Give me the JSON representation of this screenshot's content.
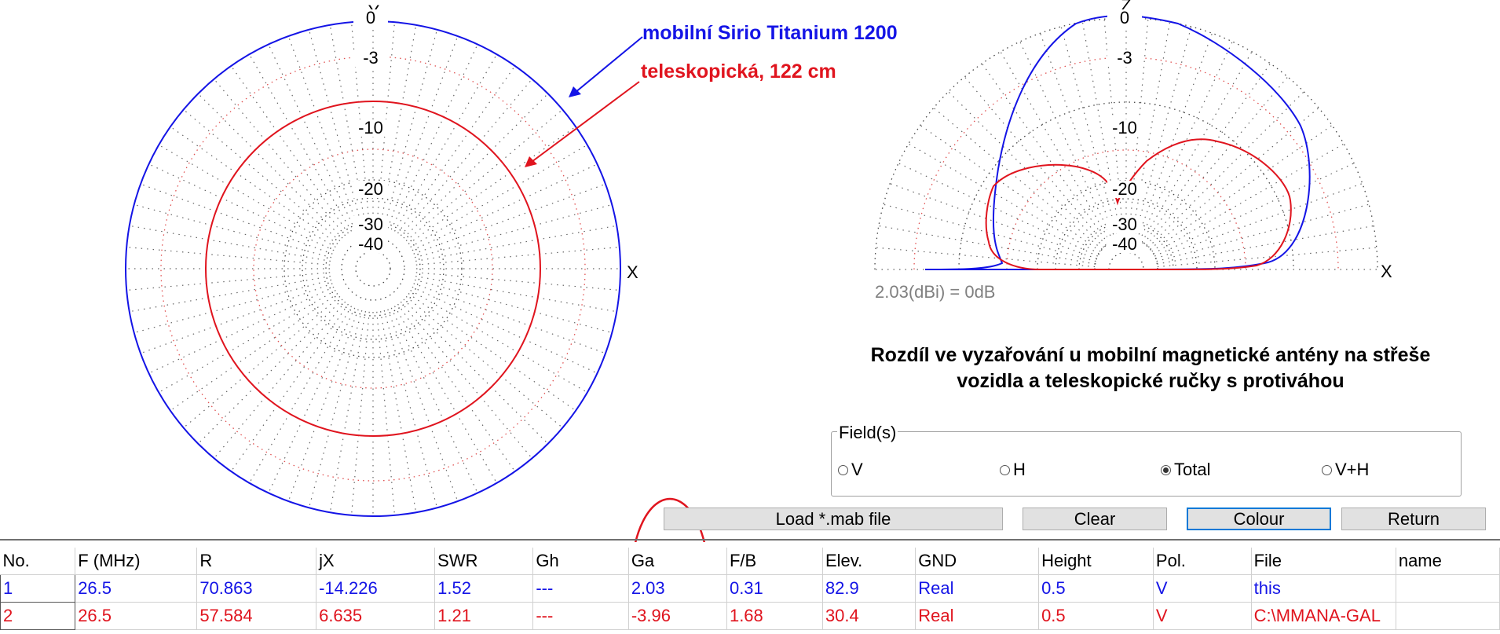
{
  "left_plot": {
    "axis_top": "Y",
    "axis_right": "X",
    "rings": [
      "0",
      "-3",
      "-10",
      "-20",
      "-30",
      "-40"
    ]
  },
  "right_plot": {
    "axis_top": "Z",
    "axis_right": "X",
    "rings": [
      "0",
      "-3",
      "-10",
      "-20",
      "-30",
      "-40"
    ],
    "reference_note": "2.03(dBi) = 0dB"
  },
  "annotations": {
    "blue_label": "mobilní Sirio Titanium 1200",
    "red_label": "teleskopická, 122 cm"
  },
  "title": {
    "line1": "Rozdíl ve vyzařování u mobilní magnetické antény na střeše",
    "line2": "vozidla a teleskopické ručky s protiváhou"
  },
  "fields": {
    "legend": "Field(s)",
    "options": [
      {
        "label": "V",
        "selected": false
      },
      {
        "label": "H",
        "selected": false
      },
      {
        "label": "Total",
        "selected": true
      },
      {
        "label": "V+H",
        "selected": false
      }
    ]
  },
  "buttons": {
    "load": "Load *.mab file",
    "clear": "Clear",
    "colour": "Colour",
    "return": "Return"
  },
  "colors": {
    "blue": "#1414e6",
    "red": "#e0141e",
    "highlight": "#e0141e"
  },
  "table": {
    "headers": [
      "No.",
      "F (MHz)",
      "R",
      "jX",
      "SWR",
      "Gh",
      "Ga",
      "F/B",
      "Elev.",
      "GND",
      "Height",
      "Pol.",
      "File",
      "name"
    ],
    "rows": [
      [
        "1",
        "26.5",
        "70.863",
        "-14.226",
        "1.52",
        "---",
        "2.03",
        "0.31",
        "82.9",
        "Real",
        "0.5",
        "V",
        "this",
        ""
      ],
      [
        "2",
        "26.5",
        "57.584",
        "6.635",
        "1.21",
        "---",
        "-3.96",
        "1.68",
        "30.4",
        "Real",
        "0.5",
        "V",
        "C:\\MMANA-GAL",
        ""
      ]
    ]
  }
}
